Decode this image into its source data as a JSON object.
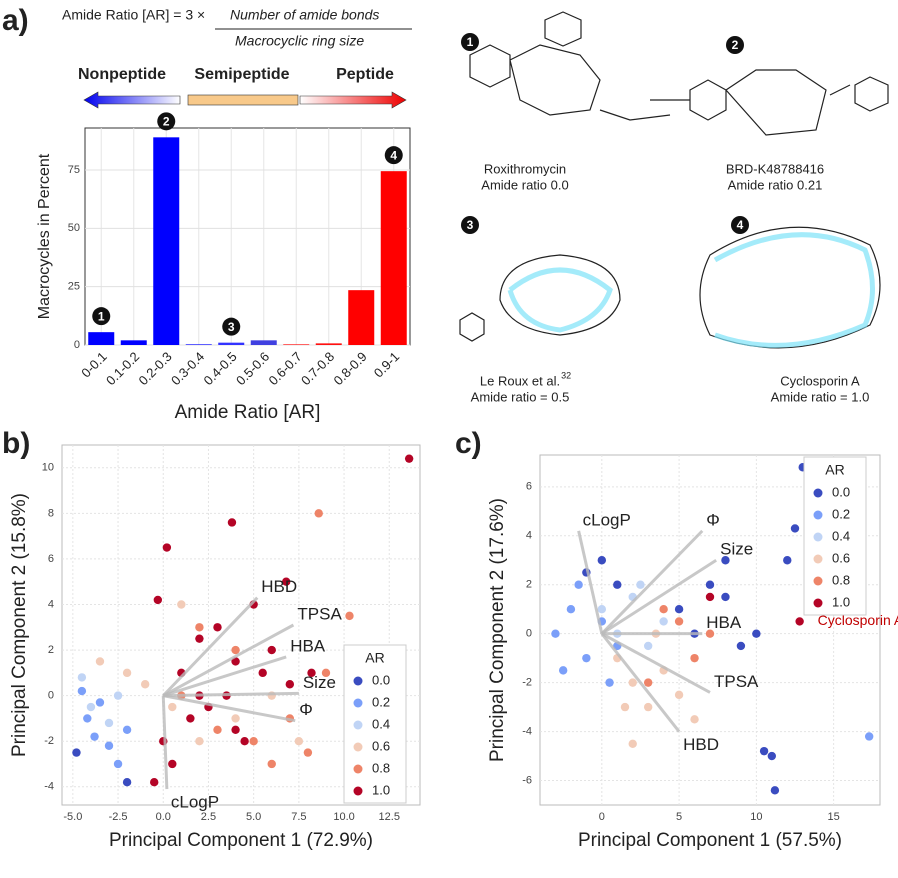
{
  "panel_labels": [
    "a)",
    "b)",
    "c)"
  ],
  "formula": {
    "left": "Amide Ratio [AR] = 3 × ",
    "numerator": "Number of amide bonds",
    "denominator": "Macrocyclic ring size"
  },
  "ranges": [
    "Nonpeptide",
    "Semipeptide",
    "Peptide"
  ],
  "molecules": [
    {
      "number": "1",
      "name": "Roxithromycin",
      "ratio": "Amide ratio 0.0"
    },
    {
      "number": "2",
      "name": "BRD-K48788416",
      "ratio": "Amide ratio 0.21"
    },
    {
      "number": "3",
      "name": "Le Roux et al.",
      "ref": "32",
      "ratio": "Amide ratio = 0.5"
    },
    {
      "number": "4",
      "name": "Cyclosporin A",
      "ratio": "Amide ratio = 1.0"
    }
  ],
  "chart_data": [
    {
      "type": "bar",
      "xlabel": "Amide Ratio [AR]",
      "ylabel": "Macrocycles in Percent",
      "categories": [
        "0-0.1",
        "0.1-0.2",
        "0.2-0.3",
        "0.3-0.4",
        "0.4-0.5",
        "0.5-0.6",
        "0.6-0.7",
        "0.7-0.8",
        "0.8-0.9",
        "0.9-1"
      ],
      "values": [
        5.5,
        2,
        89,
        0.3,
        1,
        2,
        0.3,
        0.7,
        23.5,
        74.5
      ],
      "colors": [
        "#0000ff",
        "#0000ff",
        "#0000ff",
        "#1a1aff",
        "#3333ff",
        "#4040e0",
        "#ff2020",
        "#ff1010",
        "#ff0000",
        "#ff0000"
      ],
      "ylim": [
        0,
        93
      ],
      "yticks": [
        0,
        25,
        50,
        75
      ],
      "grid": true,
      "annotations": [
        {
          "text": "1",
          "category": "0-0.1"
        },
        {
          "text": "2",
          "category": "0.2-0.3"
        },
        {
          "text": "3",
          "category": "0.4-0.5"
        },
        {
          "text": "4",
          "category": "0.9-1"
        }
      ]
    },
    {
      "type": "scatter",
      "xlabel": "Principal Component 1 (72.9%)",
      "ylabel": "Principal Component 2 (15.8%)",
      "legend_title": "AR",
      "legend": "lower right",
      "grid": true,
      "xlim": [
        -5.6,
        14.2
      ],
      "ylim": [
        -4.8,
        11
      ],
      "xticks": [
        {
          "value": -5,
          "label": "-5.0"
        },
        {
          "value": -2.5,
          "label": "-2.5"
        },
        {
          "value": 0,
          "label": "0.0"
        },
        {
          "value": 2.5,
          "label": "2.5"
        },
        {
          "value": 5,
          "label": "5.0"
        },
        {
          "value": 7.5,
          "label": "7.5"
        },
        {
          "value": 10,
          "label": "10.0"
        },
        {
          "value": 12.5,
          "label": "12.5"
        }
      ],
      "yticks": [
        -4,
        -2,
        0,
        2,
        4,
        6,
        8,
        10
      ],
      "series": [
        {
          "name": "0.0",
          "color": "#3a4cc0",
          "x": [
            -4.8,
            -2
          ],
          "y": [
            -2.5,
            -3.8
          ]
        },
        {
          "name": "0.2",
          "color": "#7b9ff9",
          "x": [
            -4.2,
            -3.8,
            -3,
            -2.5,
            -2,
            -3.5,
            -4.5
          ],
          "y": [
            -1,
            -1.8,
            -2.2,
            -3,
            -1.5,
            -0.3,
            0.2
          ]
        },
        {
          "name": "0.4",
          "color": "#c0d4f5",
          "x": [
            -4,
            -3,
            -2.5,
            -4.5
          ],
          "y": [
            -0.5,
            -1.2,
            0,
            0.8
          ]
        },
        {
          "name": "0.6",
          "color": "#f2cbb7",
          "x": [
            -2,
            -1,
            0.5,
            2,
            4,
            6,
            7.5,
            -3.5,
            1
          ],
          "y": [
            1,
            0.5,
            -0.5,
            -2,
            -1,
            0,
            -2,
            1.5,
            4
          ]
        },
        {
          "name": "0.8",
          "color": "#ee8468",
          "x": [
            1,
            3,
            5,
            7,
            8,
            4,
            2,
            6,
            9,
            10.3,
            8.6
          ],
          "y": [
            0,
            -1.5,
            -2,
            -1,
            -2.5,
            2,
            3,
            -3,
            1,
            3.5,
            8
          ]
        },
        {
          "name": "1.0",
          "color": "#b40426",
          "x": [
            -0.5,
            0,
            0.5,
            1,
            2,
            3,
            4,
            5,
            6,
            7,
            1.5,
            2.5,
            3.5,
            4.5,
            5.5,
            0.2,
            -0.3,
            3.8,
            6.8,
            8.2,
            2,
            4,
            13.6
          ],
          "y": [
            -3.8,
            -2,
            -3,
            1,
            2.5,
            3,
            1.5,
            4,
            2,
            0.5,
            -1,
            -0.5,
            0,
            -2,
            1,
            6.5,
            4.2,
            7.6,
            5,
            1,
            0,
            -1.5,
            10.4
          ]
        }
      ],
      "loadings": [
        {
          "name": "HBD",
          "x": 5.2,
          "y": 4.3
        },
        {
          "name": "TPSA",
          "x": 7.2,
          "y": 3.1
        },
        {
          "name": "HBA",
          "x": 6.8,
          "y": 1.7
        },
        {
          "name": "Size",
          "x": 7.5,
          "y": 0.1
        },
        {
          "name": "Φ",
          "x": 7.3,
          "y": -1.1
        },
        {
          "name": "cLogP",
          "x": 0.2,
          "y": -4.1
        }
      ]
    },
    {
      "type": "scatter",
      "xlabel": "Principal Component 1 (57.5%)",
      "ylabel": "Principal Component 2 (17.6%)",
      "legend_title": "AR",
      "legend": "upper right",
      "grid": true,
      "xlim": [
        -4,
        18
      ],
      "ylim": [
        -7,
        7.3
      ],
      "xticks": [
        0,
        5,
        10,
        15
      ],
      "yticks": [
        -6,
        -4,
        -2,
        0,
        2,
        4,
        6
      ],
      "series": [
        {
          "name": "0.0",
          "color": "#3a4cc0",
          "x": [
            -1,
            0,
            1,
            5,
            6,
            7,
            8,
            9,
            10,
            11,
            12,
            13,
            10.5,
            11.2,
            12.5,
            8
          ],
          "y": [
            2.5,
            3,
            2,
            1,
            0,
            2,
            1.5,
            -0.5,
            0,
            -5,
            3,
            6.8,
            -4.8,
            -6.4,
            4.3,
            3
          ]
        },
        {
          "name": "0.2",
          "color": "#7b9ff9",
          "x": [
            -3,
            -2,
            -1,
            0,
            1,
            -2.5,
            -1.5,
            0.5,
            17.3
          ],
          "y": [
            0,
            1,
            -1,
            0.5,
            -0.5,
            -1.5,
            2,
            -2,
            -4.2
          ]
        },
        {
          "name": "0.4",
          "color": "#c0d4f5",
          "x": [
            0,
            1,
            2,
            3,
            4,
            2.5
          ],
          "y": [
            1,
            0,
            1.5,
            -0.5,
            0.5,
            2
          ]
        },
        {
          "name": "0.6",
          "color": "#f2cbb7",
          "x": [
            1,
            2,
            3,
            4,
            5,
            6,
            1.5,
            3.5,
            2
          ],
          "y": [
            -1,
            -2,
            -3,
            -1.5,
            -2.5,
            -3.5,
            -3,
            0,
            -4.5
          ]
        },
        {
          "name": "0.8",
          "color": "#ee8468",
          "x": [
            4,
            5,
            6,
            7,
            3
          ],
          "y": [
            1,
            0.5,
            -1,
            0,
            -2
          ]
        },
        {
          "name": "1.0",
          "color": "#b40426",
          "x": [
            12.8,
            7
          ],
          "y": [
            0.5,
            1.5
          ]
        }
      ],
      "loadings": [
        {
          "name": "cLogP",
          "x": -1.5,
          "y": 4.2
        },
        {
          "name": "Φ",
          "x": 6.5,
          "y": 4.2
        },
        {
          "name": "Size",
          "x": 7.4,
          "y": 3
        },
        {
          "name": "HBA",
          "x": 6.5,
          "y": 0
        },
        {
          "name": "TPSA",
          "x": 7,
          "y": -2.4
        },
        {
          "name": "HBD",
          "x": 5,
          "y": -4
        }
      ],
      "annotations": [
        {
          "text": "Cyclosporin A",
          "x": 12.8,
          "y": 0.5,
          "color": "#c00000"
        }
      ]
    }
  ]
}
